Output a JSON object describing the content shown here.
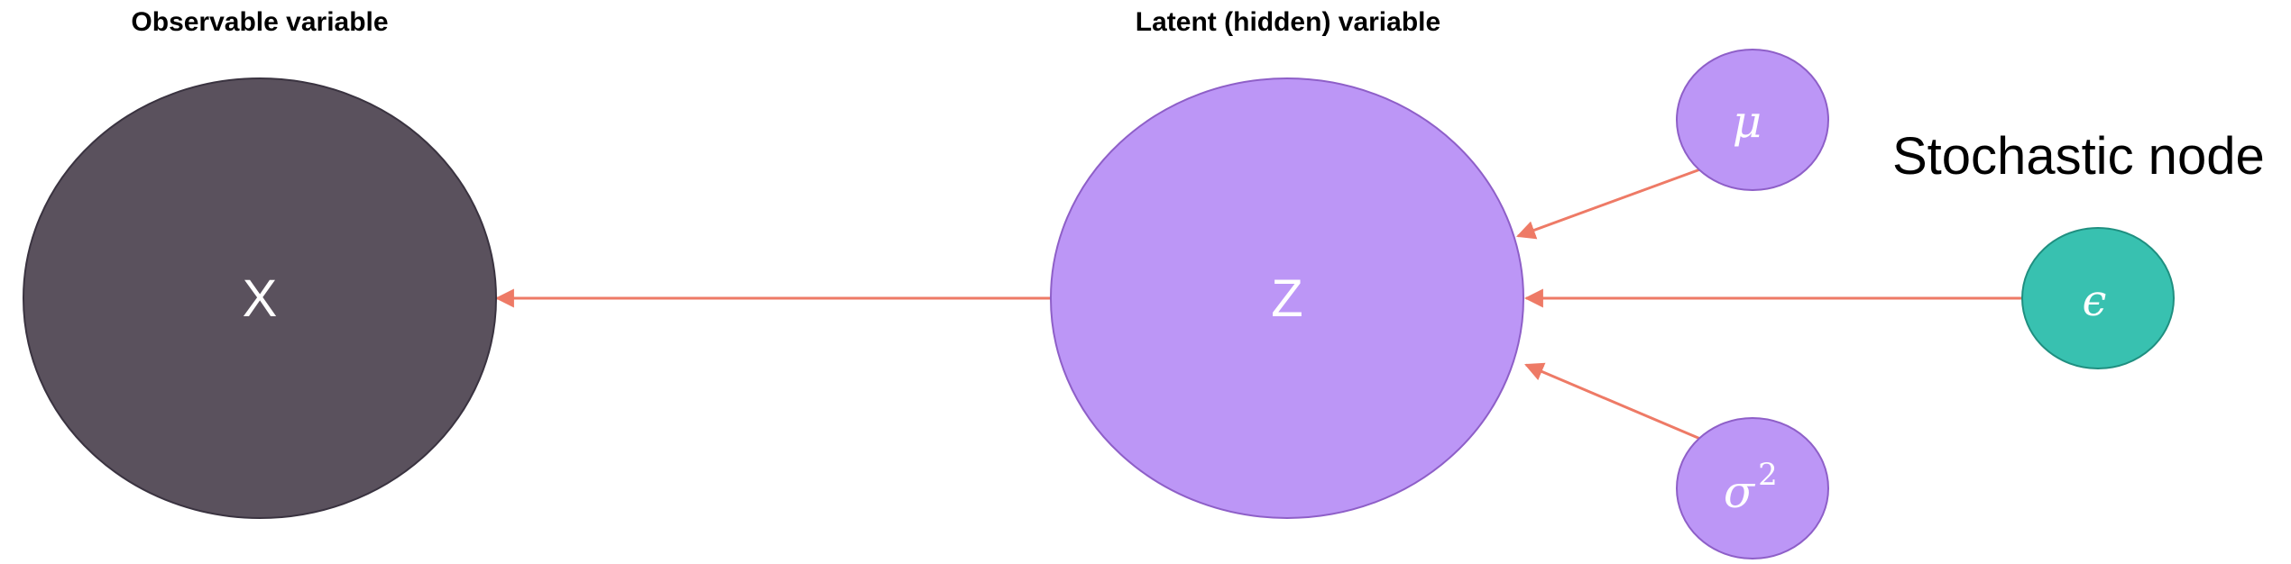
{
  "headings": {
    "observable": "Observable variable",
    "latent": "Latent (hidden) variable"
  },
  "caption": "Stochastic node",
  "nodes": {
    "x": {
      "label": "X",
      "fill": "#5a515d"
    },
    "z": {
      "label": "Z",
      "fill": "#bc96f6"
    },
    "mu": {
      "label": "μ",
      "fill": "#bc96f6"
    },
    "sigma": {
      "base": "σ",
      "exponent": "2",
      "fill": "#bc96f6"
    },
    "epsilon": {
      "label": "ϵ",
      "fill": "#38c1b0"
    }
  },
  "colors": {
    "arrow": "#ee7a66",
    "node_outline_dark": "#3a3340",
    "node_outline_purple": "#8e5fc8",
    "node_outline_teal": "#1f8f80"
  }
}
